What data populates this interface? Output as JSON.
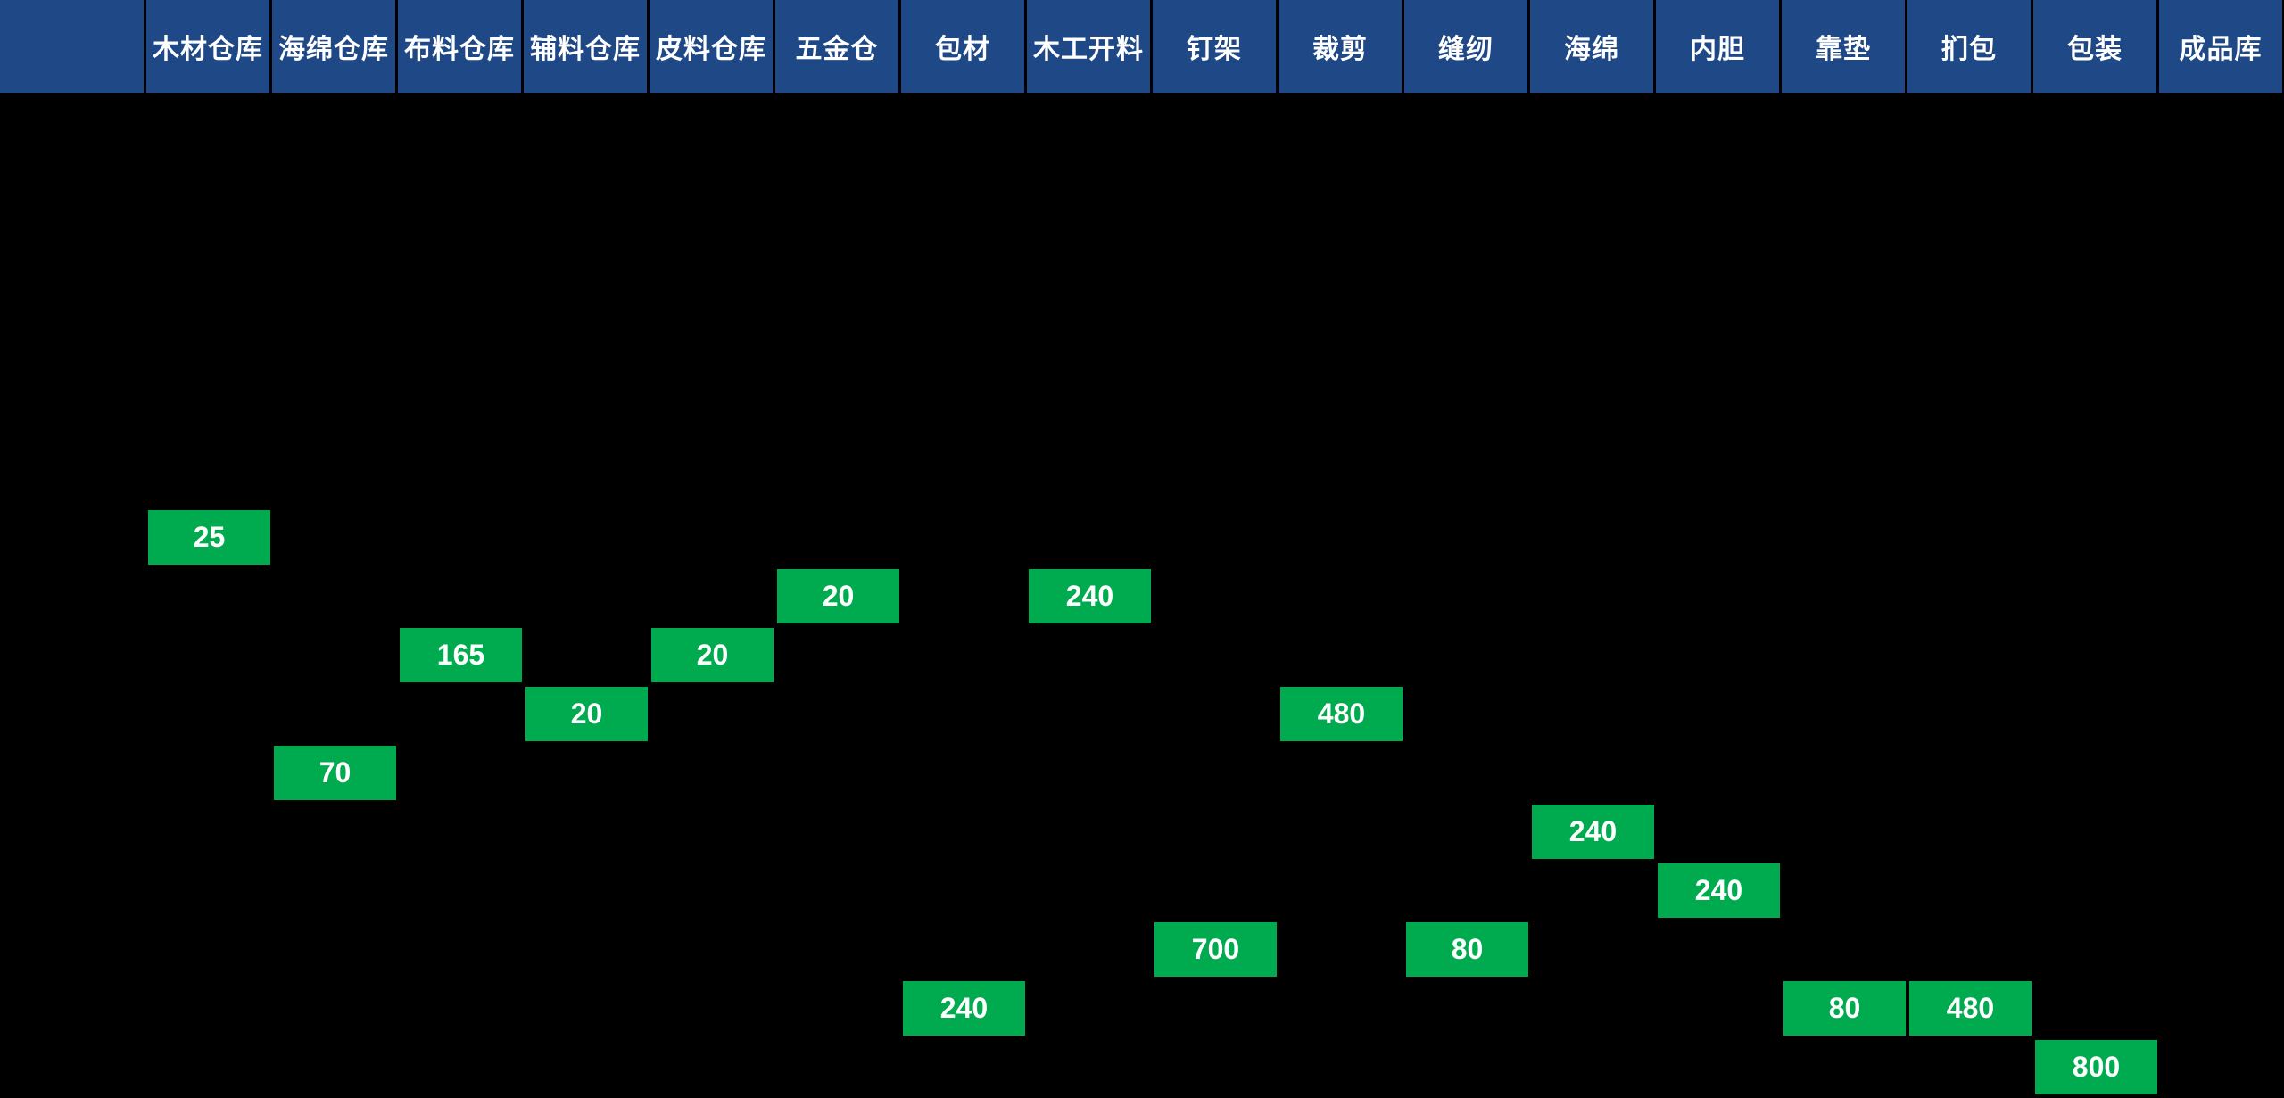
{
  "header": {
    "corner_label": "",
    "columns": [
      "木材仓库",
      "海绵仓库",
      "布料仓库",
      "辅料仓库",
      "皮料仓库",
      "五金仓",
      "包材",
      "木工开料",
      "钉架",
      "裁剪",
      "缝纫",
      "海绵",
      "内胆",
      "靠垫",
      "扪包",
      "包装",
      "成品库"
    ]
  },
  "cells": [
    {
      "station": "木材仓库",
      "col": 1,
      "row": 1,
      "value": "25"
    },
    {
      "station": "五金仓",
      "col": 6,
      "row": 2,
      "value": "20"
    },
    {
      "station": "木工开料",
      "col": 8,
      "row": 2,
      "value": "240"
    },
    {
      "station": "布料仓库",
      "col": 3,
      "row": 3,
      "value": "165"
    },
    {
      "station": "皮料仓库",
      "col": 5,
      "row": 3,
      "value": "20"
    },
    {
      "station": "辅料仓库",
      "col": 4,
      "row": 4,
      "value": "20"
    },
    {
      "station": "裁剪",
      "col": 10,
      "row": 4,
      "value": "480"
    },
    {
      "station": "海绵仓库",
      "col": 2,
      "row": 5,
      "value": "70"
    },
    {
      "station": "海绵",
      "col": 12,
      "row": 6,
      "value": "240"
    },
    {
      "station": "内胆",
      "col": 13,
      "row": 7,
      "value": "240"
    },
    {
      "station": "钉架",
      "col": 9,
      "row": 8,
      "value": "700"
    },
    {
      "station": "缝纫",
      "col": 11,
      "row": 8,
      "value": "80"
    },
    {
      "station": "包材",
      "col": 7,
      "row": 9,
      "value": "240"
    },
    {
      "station": "靠垫",
      "col": 14,
      "row": 9,
      "value": "80"
    },
    {
      "station": "扪包",
      "col": 15,
      "row": 9,
      "value": "480"
    },
    {
      "station": "包装",
      "col": 16,
      "row": 10,
      "value": "800"
    }
  ],
  "colors": {
    "header_bg": "#1E4886",
    "value_cell_bg": "#00AB4F",
    "background": "#000000",
    "text": "#FFFFFF"
  }
}
